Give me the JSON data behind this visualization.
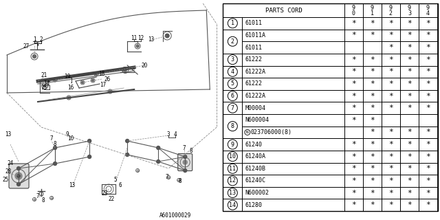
{
  "diagram_code": "A601000029",
  "rows": [
    {
      "num": "1",
      "part": "61011",
      "cols": [
        "*",
        "*",
        "*",
        "*",
        "*"
      ],
      "merge_id": 0
    },
    {
      "num": "2",
      "part": "61011A",
      "cols": [
        "*",
        "*",
        "*",
        "*",
        "*"
      ],
      "merge_id": 2
    },
    {
      "num": "2",
      "part": "61011",
      "cols": [
        " ",
        " ",
        "*",
        "*",
        "*"
      ],
      "merge_id": 2
    },
    {
      "num": "3",
      "part": "61222",
      "cols": [
        "*",
        "*",
        "*",
        "*",
        "*"
      ],
      "merge_id": 0
    },
    {
      "num": "4",
      "part": "61222A",
      "cols": [
        "*",
        "*",
        "*",
        "*",
        "*"
      ],
      "merge_id": 0
    },
    {
      "num": "5",
      "part": "61222",
      "cols": [
        "*",
        "*",
        "*",
        "*",
        "*"
      ],
      "merge_id": 0
    },
    {
      "num": "6",
      "part": "61222A",
      "cols": [
        "*",
        "*",
        "*",
        "*",
        "*"
      ],
      "merge_id": 0
    },
    {
      "num": "7",
      "part": "M00004",
      "cols": [
        "*",
        "*",
        "*",
        "*",
        "*"
      ],
      "merge_id": 0
    },
    {
      "num": "8",
      "part": "N600004",
      "cols": [
        "*",
        "*",
        " ",
        " ",
        " "
      ],
      "merge_id": 8
    },
    {
      "num": "8",
      "part": "N023706000(8)",
      "cols": [
        " ",
        "*",
        "*",
        "*",
        "*"
      ],
      "merge_id": 8
    },
    {
      "num": "9",
      "part": "61240",
      "cols": [
        "*",
        "*",
        "*",
        "*",
        "*"
      ],
      "merge_id": 0
    },
    {
      "num": "10",
      "part": "61240A",
      "cols": [
        "*",
        "*",
        "*",
        "*",
        "*"
      ],
      "merge_id": 0
    },
    {
      "num": "11",
      "part": "61240B",
      "cols": [
        "*",
        "*",
        "*",
        "*",
        "*"
      ],
      "merge_id": 0
    },
    {
      "num": "12",
      "part": "61240C",
      "cols": [
        "*",
        "*",
        "*",
        "*",
        "*"
      ],
      "merge_id": 0
    },
    {
      "num": "13",
      "part": "N600002",
      "cols": [
        "*",
        "*",
        "*",
        "*",
        "*"
      ],
      "merge_id": 0
    },
    {
      "num": "14",
      "part": "61280",
      "cols": [
        "*",
        "*",
        "*",
        "*",
        "*"
      ],
      "merge_id": 0
    }
  ],
  "bg_color": "#ffffff"
}
